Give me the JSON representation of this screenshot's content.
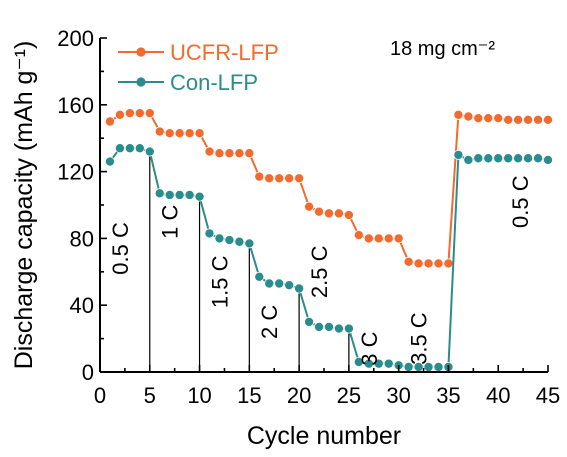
{
  "chart_data": {
    "type": "line",
    "xlabel": "Cycle number",
    "ylabel": "Discharge capacity (mAh g⁻¹)",
    "annotation": "18 mg cm⁻²",
    "xlim": [
      0,
      45
    ],
    "ylim": [
      0,
      200
    ],
    "xticks": [
      0,
      5,
      10,
      15,
      20,
      25,
      30,
      35,
      40,
      45
    ],
    "yticks": [
      0,
      40,
      80,
      120,
      160,
      200
    ],
    "x": [
      1,
      2,
      3,
      4,
      5,
      6,
      7,
      8,
      9,
      10,
      11,
      12,
      13,
      14,
      15,
      16,
      17,
      18,
      19,
      20,
      21,
      22,
      23,
      24,
      25,
      26,
      27,
      28,
      29,
      30,
      31,
      32,
      33,
      34,
      35,
      36,
      37,
      38,
      39,
      40,
      41,
      42,
      43,
      44,
      45
    ],
    "series": [
      {
        "name": "UCFR-LFP",
        "color": "#f26a2e",
        "values": [
          150,
          154,
          155,
          155,
          155,
          144,
          143,
          143,
          143,
          143,
          132,
          131,
          131,
          131,
          131,
          117,
          116,
          116,
          116,
          116,
          99,
          96,
          95,
          95,
          94,
          82,
          80,
          80,
          80,
          80,
          66,
          65,
          65,
          65,
          65,
          154,
          153,
          152,
          152,
          152,
          151,
          151,
          151,
          151,
          151
        ]
      },
      {
        "name": "Con-LFP",
        "color": "#2a8c8c",
        "values": [
          126,
          134,
          134,
          134,
          132,
          107,
          106,
          106,
          106,
          105,
          83,
          80,
          79,
          78,
          77,
          57,
          53,
          53,
          52,
          50,
          30,
          27,
          27,
          26,
          26,
          6,
          5,
          5,
          5,
          4,
          3,
          3,
          3,
          3,
          3,
          130,
          127,
          128,
          128,
          128,
          128,
          128,
          128,
          128,
          127
        ]
      }
    ],
    "rate_labels": [
      {
        "text": "0.5 C",
        "x": 2.8,
        "y": 74
      },
      {
        "text": "1 C",
        "x": 7.8,
        "y": 90
      },
      {
        "text": "1.5 C",
        "x": 12.8,
        "y": 54
      },
      {
        "text": "2 C",
        "x": 17.8,
        "y": 30
      },
      {
        "text": "2.5 C",
        "x": 22.8,
        "y": 60
      },
      {
        "text": "3 C",
        "x": 27.8,
        "y": 14
      },
      {
        "text": "3.5 C",
        "x": 32.8,
        "y": 20
      },
      {
        "text": "0.5 C",
        "x": 43,
        "y": 102
      }
    ],
    "dividers": [
      5,
      10,
      15,
      20,
      25,
      30,
      35
    ],
    "legend_position": "top-left"
  }
}
